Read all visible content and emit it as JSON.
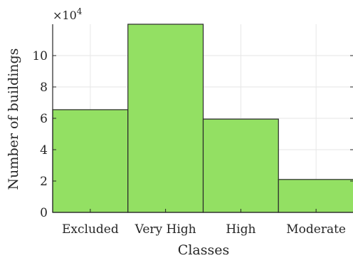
{
  "chart_data": {
    "type": "bar",
    "categories": [
      "Excluded",
      "Very High",
      "High",
      "Moderate"
    ],
    "values": [
      65500,
      120000,
      59500,
      21000
    ],
    "xlabel": "Classes",
    "ylabel": "Number of buildings",
    "y_multiplier_label": "×10",
    "y_multiplier_exponent": "4",
    "y_ticks": [
      0,
      2,
      4,
      6,
      8,
      10
    ],
    "y_tick_labels": [
      "0",
      "2",
      "4",
      "6",
      "8",
      "10"
    ],
    "y_scale": 10000,
    "ylim": [
      0,
      120000
    ],
    "grid": true,
    "colors": {
      "bar_fill": "#93e063",
      "bar_edge": "#2b2b2b",
      "grid": "#e6e6e6",
      "axis": "#262626"
    }
  }
}
